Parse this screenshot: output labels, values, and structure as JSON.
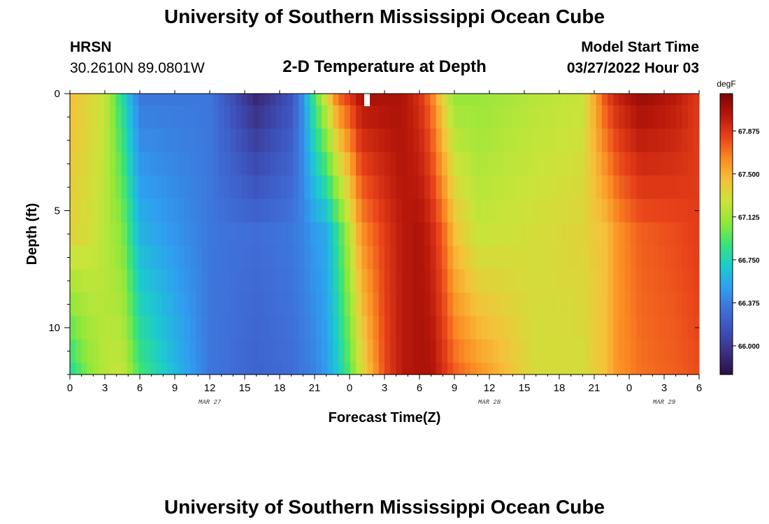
{
  "page": {
    "title": "University of Southern Mississippi Ocean Cube",
    "footer_title": "University of Southern Mississippi Ocean Cube",
    "station": "HRSN",
    "coordinates": "30.2610N  89.0801W",
    "plot_title": "2-D Temperature at Depth",
    "model_label": "Model Start Time",
    "model_time": "03/27/2022 Hour 03"
  },
  "chart_data": {
    "type": "heatmap",
    "title": "2-D Temperature at Depth",
    "xlabel": "Forecast Time(Z)",
    "ylabel": "Depth (ft)",
    "x_hours_range": [
      0,
      54
    ],
    "x_tick_labels": [
      "0",
      "3",
      "6",
      "9",
      "12",
      "15",
      "18",
      "21",
      "0",
      "3",
      "6",
      "9",
      "12",
      "15",
      "18",
      "21",
      "0",
      "3",
      "6"
    ],
    "date_labels": [
      {
        "label": "MAR 27",
        "hour": 12
      },
      {
        "label": "MAR 28",
        "hour": 36
      },
      {
        "label": "MAR 29",
        "hour": 51
      }
    ],
    "y_range": [
      0,
      12
    ],
    "y_tick_labels": [
      "0",
      "5",
      "10"
    ],
    "y_ticks": [
      0,
      5,
      10
    ],
    "colorbar": {
      "unit": "degF",
      "range": [
        65.75,
        68.2
      ],
      "tick_labels": [
        "66.000",
        "66.375",
        "66.750",
        "67.125",
        "67.500",
        "67.875"
      ],
      "ticks": [
        66.0,
        66.375,
        66.75,
        67.125,
        67.5,
        67.875
      ],
      "colors": [
        "#2a0f45",
        "#3b2f82",
        "#3d4fb8",
        "#3f6fd8",
        "#2f9ef0",
        "#1ccad0",
        "#37e37a",
        "#8fe83a",
        "#c9e43a",
        "#f6c13a",
        "#fb8a22",
        "#e8421a",
        "#b7170a",
        "#7a0606"
      ]
    },
    "depth_levels_ft": [
      0,
      1,
      2,
      3,
      4,
      5,
      6,
      7,
      8,
      9,
      10,
      11,
      12
    ],
    "key_times_hours": [
      0,
      1.5,
      3,
      4.5,
      6,
      12,
      16,
      19,
      20,
      21,
      22,
      23,
      24,
      25,
      27,
      28.5,
      30,
      31,
      32,
      33,
      35,
      40,
      44,
      46,
      47,
      49,
      52,
      54
    ],
    "profiles_degF": {
      "surface": [
        67.45,
        67.35,
        67.25,
        66.8,
        66.35,
        66.35,
        65.9,
        66.15,
        66.45,
        66.9,
        67.3,
        67.7,
        67.85,
        68.05,
        68.05,
        68.05,
        67.9,
        67.7,
        67.35,
        67.1,
        67.1,
        67.2,
        67.25,
        67.8,
        67.95,
        68.1,
        68.0,
        67.85
      ],
      "middle": [
        67.35,
        67.3,
        67.2,
        67.05,
        66.6,
        66.35,
        66.3,
        66.35,
        66.4,
        66.5,
        66.55,
        66.85,
        67.2,
        67.6,
        67.85,
        68.0,
        68.05,
        67.95,
        67.75,
        67.45,
        67.25,
        67.3,
        67.35,
        67.45,
        67.6,
        67.75,
        67.8,
        67.85
      ],
      "bottom": [
        66.8,
        67.05,
        67.2,
        67.25,
        66.9,
        66.35,
        66.25,
        66.3,
        66.35,
        66.4,
        66.5,
        66.7,
        66.95,
        67.3,
        67.8,
        68.0,
        68.05,
        68.05,
        67.9,
        67.75,
        67.6,
        67.3,
        67.3,
        67.45,
        67.6,
        67.7,
        67.75,
        67.8
      ]
    }
  }
}
